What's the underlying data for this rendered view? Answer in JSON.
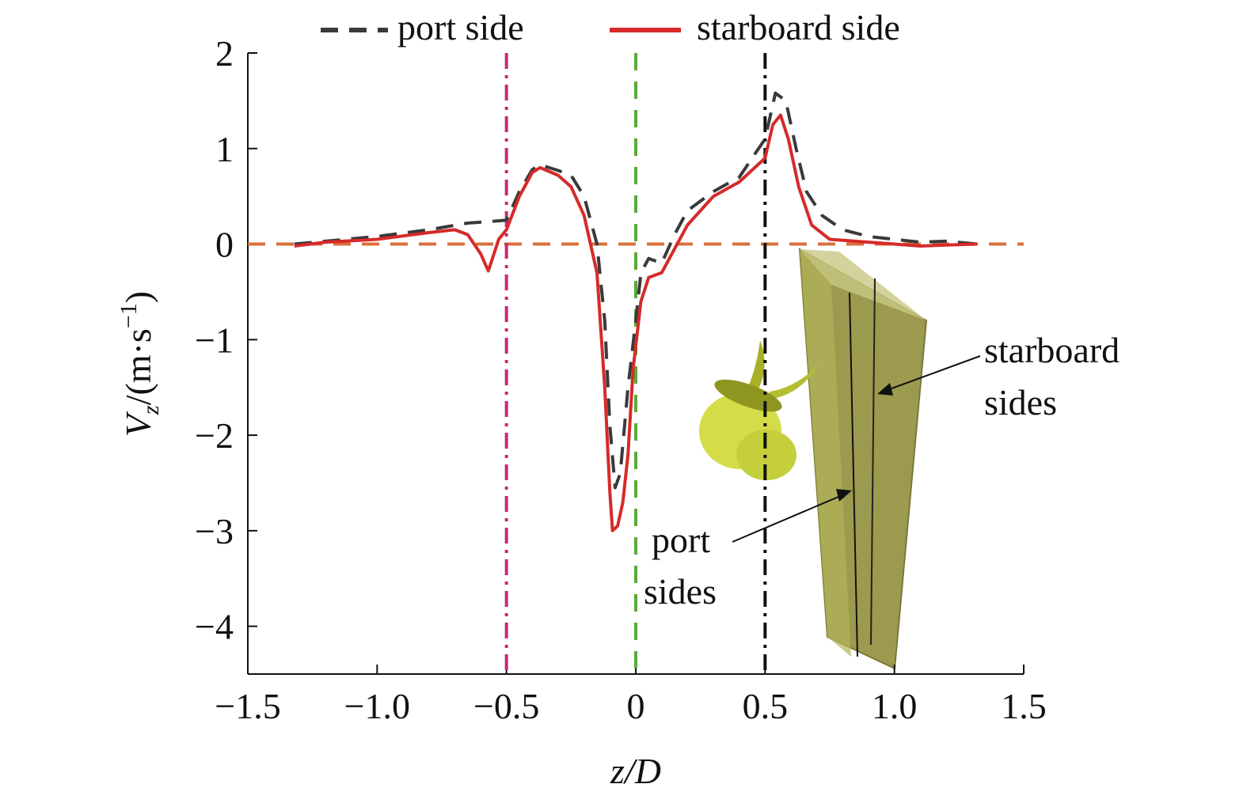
{
  "chart_data": {
    "type": "line",
    "x_label": "z/D",
    "y_label_parts": [
      "V",
      "z",
      "/(m·s",
      "−1",
      ")"
    ],
    "xlim": [
      -1.5,
      1.5
    ],
    "ylim": [
      -4.5,
      2
    ],
    "xticks": [
      {
        "value": -1.5,
        "label": "−1.5"
      },
      {
        "value": -1.0,
        "label": "−1.0"
      },
      {
        "value": -0.5,
        "label": "−0.5"
      },
      0,
      0.5,
      {
        "value": 1.0,
        "label": "1.0"
      },
      1.5
    ],
    "yticks": [
      2,
      1,
      0,
      {
        "value": -1,
        "label": "−1"
      },
      {
        "value": -2,
        "label": "−2"
      },
      {
        "value": -3,
        "label": "−3"
      },
      {
        "value": -4,
        "label": "−4"
      }
    ],
    "vlines": [
      {
        "value": -0.5,
        "color": "#c8287a",
        "dash": "dashdot"
      },
      {
        "value": 0,
        "color": "#5aaa3a",
        "dash": "dashed"
      },
      {
        "value": 0.5,
        "color": "#111111",
        "dash": "dashdot"
      }
    ],
    "hline": {
      "value": 0,
      "color": "#d9703a",
      "dash": "dashed"
    },
    "series": [
      {
        "name": "port side",
        "color": "#3a3a3a",
        "dash": "dashed",
        "x": [
          -1.32,
          -1.2,
          -1.0,
          -0.8,
          -0.65,
          -0.55,
          -0.5,
          -0.45,
          -0.4,
          -0.37,
          -0.3,
          -0.25,
          -0.2,
          -0.15,
          -0.12,
          -0.1,
          -0.08,
          -0.06,
          -0.03,
          0,
          0.02,
          0.05,
          0.1,
          0.15,
          0.2,
          0.3,
          0.4,
          0.5,
          0.54,
          0.58,
          0.62,
          0.66,
          0.72,
          0.8,
          0.9,
          1.0,
          1.1,
          1.2,
          1.32
        ],
        "values": [
          0,
          0.03,
          0.08,
          0.15,
          0.22,
          0.24,
          0.25,
          0.55,
          0.78,
          0.83,
          0.77,
          0.72,
          0.5,
          0,
          -0.8,
          -1.9,
          -2.55,
          -2.4,
          -1.5,
          -0.8,
          -0.3,
          -0.15,
          -0.2,
          0.1,
          0.35,
          0.55,
          0.7,
          1.1,
          1.58,
          1.5,
          1.0,
          0.55,
          0.3,
          0.15,
          0.08,
          0.05,
          0.02,
          0.03,
          0
        ]
      },
      {
        "name": "starboard side",
        "color": "#d62a2a",
        "dash": "solid",
        "x": [
          -1.32,
          -1.2,
          -1.0,
          -0.8,
          -0.7,
          -0.65,
          -0.6,
          -0.57,
          -0.53,
          -0.5,
          -0.45,
          -0.4,
          -0.37,
          -0.3,
          -0.25,
          -0.2,
          -0.15,
          -0.12,
          -0.1,
          -0.09,
          -0.07,
          -0.05,
          -0.03,
          -0.01,
          0.02,
          0.05,
          0.1,
          0.15,
          0.2,
          0.3,
          0.4,
          0.5,
          0.53,
          0.56,
          0.59,
          0.63,
          0.68,
          0.75,
          0.9,
          1.0,
          1.1,
          1.2,
          1.32
        ],
        "values": [
          -0.02,
          0.02,
          0.05,
          0.12,
          0.15,
          0.1,
          -0.1,
          -0.28,
          0.05,
          0.15,
          0.5,
          0.75,
          0.8,
          0.72,
          0.6,
          0.3,
          -0.3,
          -1.5,
          -2.6,
          -3.0,
          -2.95,
          -2.7,
          -2.2,
          -1.3,
          -0.6,
          -0.35,
          -0.3,
          -0.05,
          0.2,
          0.5,
          0.65,
          0.9,
          1.25,
          1.35,
          1.1,
          0.6,
          0.2,
          0.05,
          0.02,
          0,
          -0.02,
          -0.01,
          0
        ]
      }
    ],
    "annotations": [
      {
        "lines": [
          "starboard",
          "sides"
        ]
      },
      {
        "lines": [
          "port",
          "sides"
        ]
      }
    ]
  }
}
